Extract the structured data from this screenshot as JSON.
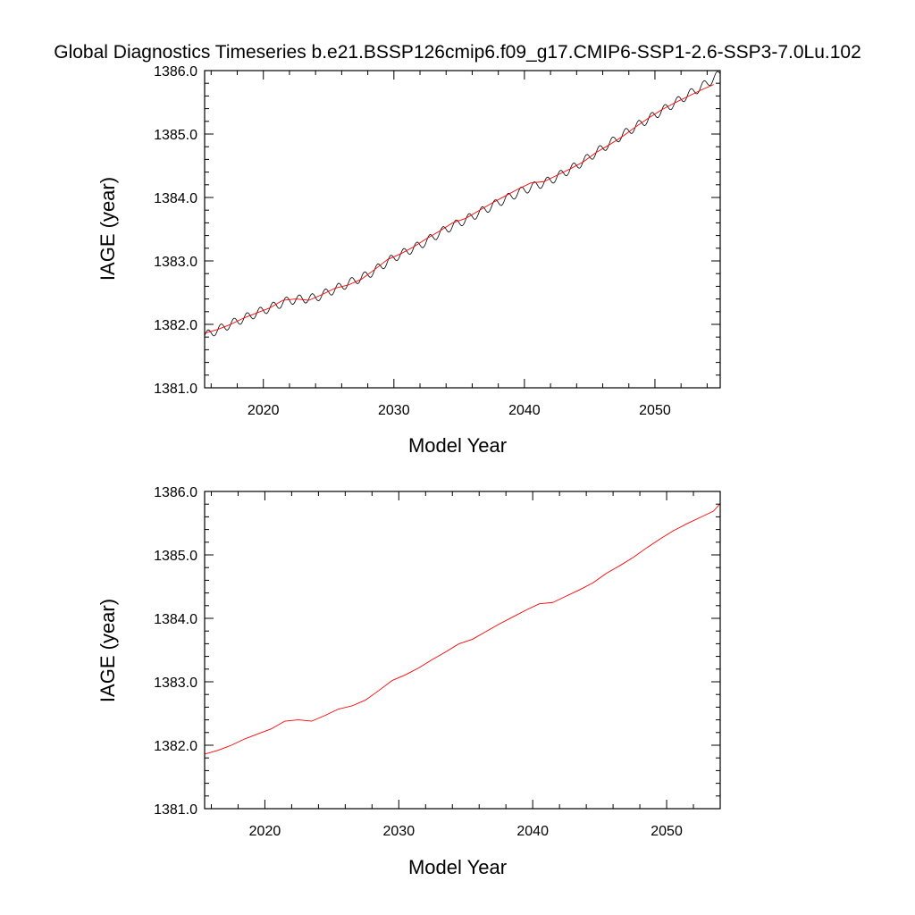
{
  "figure": {
    "title": "Global Diagnostics Timeseries b.e21.BSSP126cmip6.f09_g17.CMIP6-SSP1-2.6-SSP3-7.0Lu.102"
  },
  "chart_data": [
    {
      "type": "line",
      "xlabel": "Model Year",
      "ylabel": "IAGE (year)",
      "xlim": [
        2015.5,
        2055.0
      ],
      "ylim": [
        1381.0,
        1386.0
      ],
      "x_ticks": [
        2020,
        2030,
        2040,
        2050
      ],
      "x_tick_labels": [
        "2020",
        "2030",
        "2040",
        "2050"
      ],
      "y_ticks": [
        1381.0,
        1382.0,
        1383.0,
        1384.0,
        1385.0,
        1386.0
      ],
      "y_tick_labels": [
        "1381.0",
        "1382.0",
        "1383.0",
        "1384.0",
        "1385.0",
        "1386.0"
      ],
      "grid": false,
      "legend": "none",
      "series": [
        {
          "kind": "monthly",
          "color": "#000000",
          "start": 2015.5,
          "step": 0.0833,
          "seasonal_amplitude": 0.07,
          "trend_points": [
            [
              2015.5,
              1381.82
            ],
            [
              2018.0,
              1382.05
            ],
            [
              2020.0,
              1382.22
            ],
            [
              2022.0,
              1382.38
            ],
            [
              2024.0,
              1382.42
            ],
            [
              2026.0,
              1382.6
            ],
            [
              2028.0,
              1382.78
            ],
            [
              2030.0,
              1383.05
            ],
            [
              2032.0,
              1383.25
            ],
            [
              2034.0,
              1383.5
            ],
            [
              2036.0,
              1383.7
            ],
            [
              2038.0,
              1383.92
            ],
            [
              2040.0,
              1384.12
            ],
            [
              2042.0,
              1384.27
            ],
            [
              2044.0,
              1384.5
            ],
            [
              2046.0,
              1384.78
            ],
            [
              2048.0,
              1385.05
            ],
            [
              2050.0,
              1385.3
            ],
            [
              2052.0,
              1385.55
            ],
            [
              2054.0,
              1385.8
            ],
            [
              2055.0,
              1385.95
            ]
          ]
        },
        {
          "kind": "annual mean",
          "color": "#ff0000",
          "x": [
            2015.5,
            2016.5,
            2017.5,
            2018.5,
            2019.5,
            2020.5,
            2021.5,
            2022.5,
            2023.5,
            2024.5,
            2025.5,
            2026.5,
            2027.5,
            2028.5,
            2029.5,
            2030.5,
            2031.5,
            2032.5,
            2033.5,
            2034.5,
            2035.5,
            2036.5,
            2037.5,
            2038.5,
            2039.5,
            2040.5,
            2041.5,
            2042.5,
            2043.5,
            2044.5,
            2045.5,
            2046.5,
            2047.5,
            2048.5,
            2049.5,
            2050.5,
            2051.5,
            2052.5,
            2053.5,
            2054.5
          ],
          "y": [
            1381.86,
            1381.92,
            1382.0,
            1382.1,
            1382.18,
            1382.26,
            1382.38,
            1382.4,
            1382.38,
            1382.47,
            1382.57,
            1382.62,
            1382.71,
            1382.86,
            1383.02,
            1383.11,
            1383.22,
            1383.35,
            1383.47,
            1383.6,
            1383.67,
            1383.79,
            1383.91,
            1384.02,
            1384.13,
            1384.23,
            1384.25,
            1384.35,
            1384.45,
            1384.56,
            1384.71,
            1384.83,
            1384.96,
            1385.11,
            1385.25,
            1385.38,
            1385.49,
            1385.59,
            1385.69,
            1385.78
          ]
        }
      ]
    },
    {
      "type": "line",
      "xlabel": "Model Year",
      "ylabel": "IAGE (year)",
      "xlim": [
        2015.5,
        2054.0
      ],
      "ylim": [
        1381.0,
        1386.0
      ],
      "x_ticks": [
        2020,
        2030,
        2040,
        2050
      ],
      "x_tick_labels": [
        "2020",
        "2030",
        "2040",
        "2050"
      ],
      "y_ticks": [
        1381.0,
        1382.0,
        1383.0,
        1384.0,
        1385.0,
        1386.0
      ],
      "y_tick_labels": [
        "1381.0",
        "1382.0",
        "1383.0",
        "1384.0",
        "1385.0",
        "1386.0"
      ],
      "grid": false,
      "legend": "none",
      "series": [
        {
          "kind": "annual mean",
          "color": "#ff0000",
          "x": [
            2015.5,
            2016.5,
            2017.5,
            2018.5,
            2019.5,
            2020.5,
            2021.5,
            2022.5,
            2023.5,
            2024.5,
            2025.5,
            2026.5,
            2027.5,
            2028.5,
            2029.5,
            2030.5,
            2031.5,
            2032.5,
            2033.5,
            2034.5,
            2035.5,
            2036.5,
            2037.5,
            2038.5,
            2039.5,
            2040.5,
            2041.5,
            2042.5,
            2043.5,
            2044.5,
            2045.5,
            2046.5,
            2047.5,
            2048.5,
            2049.5,
            2050.5,
            2051.5,
            2052.5,
            2053.5,
            2054.0
          ],
          "y": [
            1381.86,
            1381.92,
            1382.0,
            1382.1,
            1382.18,
            1382.26,
            1382.38,
            1382.4,
            1382.38,
            1382.47,
            1382.57,
            1382.62,
            1382.71,
            1382.86,
            1383.02,
            1383.11,
            1383.22,
            1383.35,
            1383.47,
            1383.6,
            1383.67,
            1383.79,
            1383.91,
            1384.02,
            1384.13,
            1384.23,
            1384.25,
            1384.35,
            1384.45,
            1384.56,
            1384.71,
            1384.83,
            1384.96,
            1385.11,
            1385.25,
            1385.38,
            1385.49,
            1385.59,
            1385.69,
            1385.81
          ]
        }
      ]
    }
  ]
}
